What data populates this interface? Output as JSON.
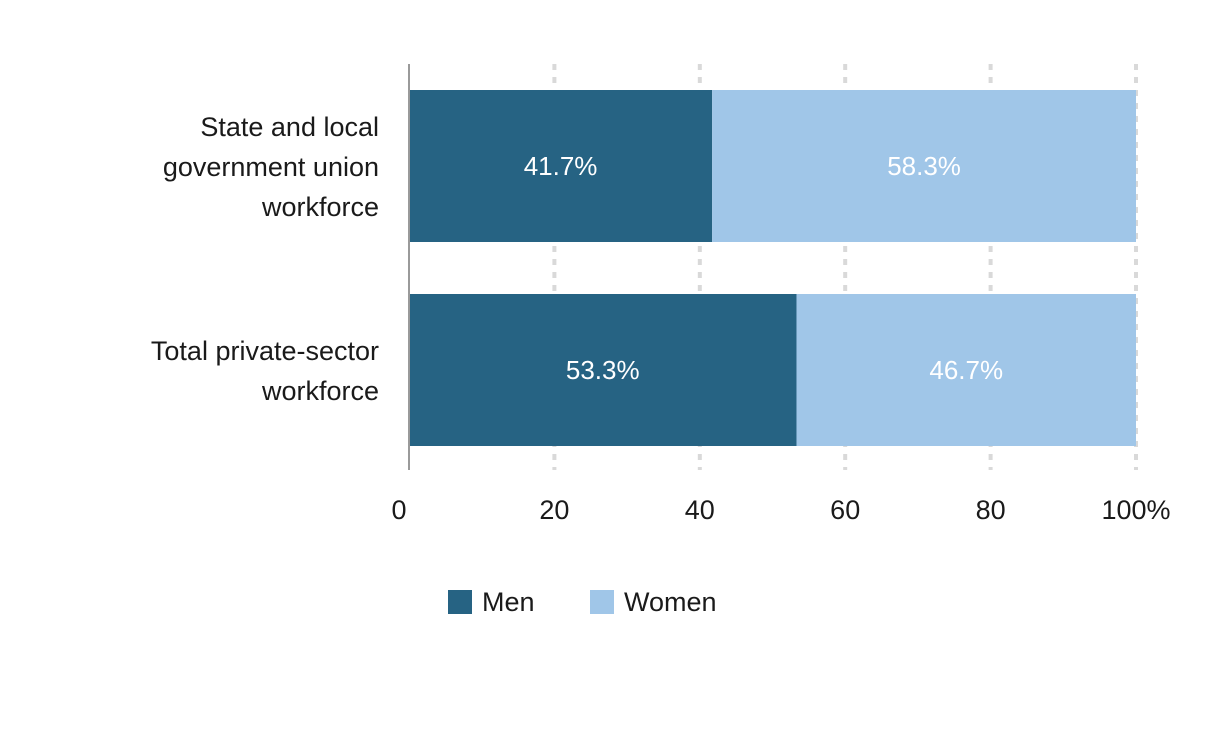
{
  "chart_data": {
    "type": "bar",
    "orientation": "horizontal",
    "stacked": true,
    "categories": [
      [
        "State and local",
        "government union",
        "workforce"
      ],
      [
        "Total private-sector",
        "workforce"
      ]
    ],
    "series": [
      {
        "name": "Men",
        "values": [
          41.7,
          53.3
        ],
        "labels": [
          "41.7%",
          "53.3%"
        ],
        "color": "#266383"
      },
      {
        "name": "Women",
        "values": [
          58.3,
          46.7
        ],
        "labels": [
          "58.3%",
          "46.7%"
        ],
        "color": "#a0c6e8"
      }
    ],
    "xlim": [
      0,
      100
    ],
    "xticks": [
      0,
      20,
      40,
      60,
      80,
      100
    ],
    "xtick_labels": [
      "0",
      "20",
      "40",
      "60",
      "80",
      "100%"
    ],
    "grid": "vertical-dotted",
    "legend": "bottom-center"
  }
}
